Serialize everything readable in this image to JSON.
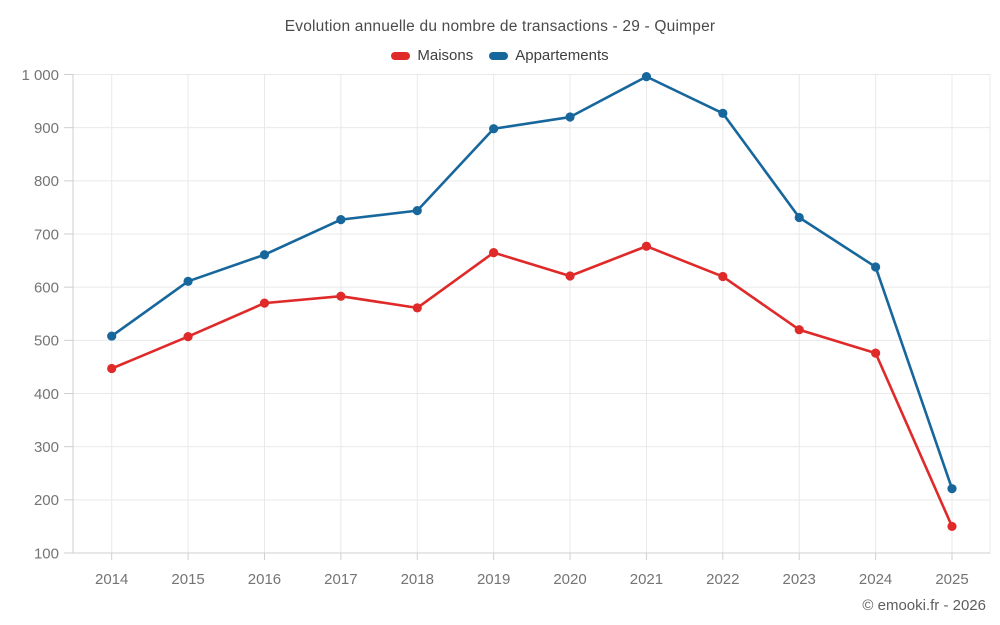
{
  "chart_data": {
    "type": "line",
    "title": "Evolution annuelle du nombre de transactions - 29 - Quimper",
    "categories": [
      "2014",
      "2015",
      "2016",
      "2017",
      "2018",
      "2019",
      "2020",
      "2021",
      "2022",
      "2023",
      "2024",
      "2025"
    ],
    "series": [
      {
        "name": "Maisons",
        "color": "#e02a2a",
        "values": [
          447,
          507,
          570,
          583,
          561,
          665,
          621,
          677,
          620,
          520,
          476,
          150
        ]
      },
      {
        "name": "Appartements",
        "color": "#17679d",
        "values": [
          508,
          611,
          661,
          727,
          744,
          898,
          920,
          996,
          927,
          731,
          638,
          221
        ]
      }
    ],
    "xlabel": "",
    "ylabel": "",
    "ylim": [
      100,
      1000
    ],
    "y_step": 100,
    "y_tick_labels": [
      "100",
      "200",
      "300",
      "400",
      "500",
      "600",
      "700",
      "800",
      "900",
      "1 000"
    ],
    "grid": true,
    "legend_position": "top",
    "grid_color": "#e9e9e9",
    "axis_color": "#cfcfcf",
    "tick_label_color": "#747474"
  },
  "footer": {
    "copyright": "© emooki.fr - 2026"
  }
}
